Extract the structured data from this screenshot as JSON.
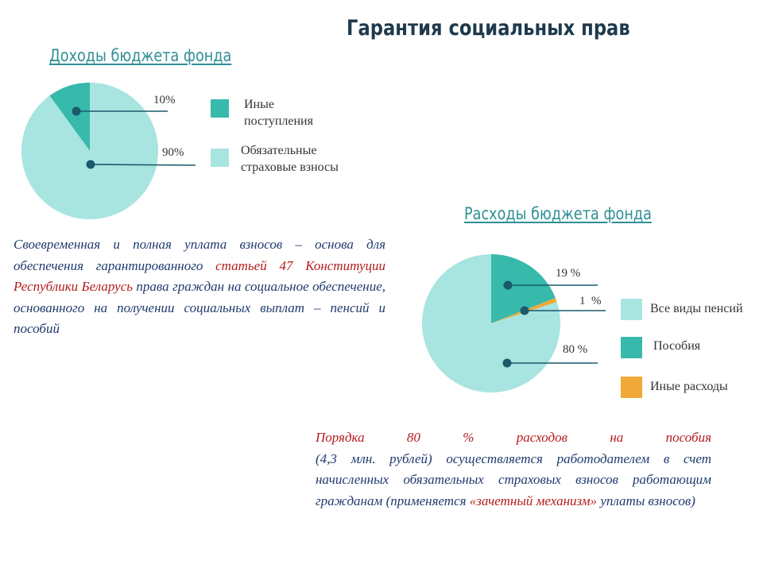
{
  "page": {
    "title": "Гарантия социальных прав"
  },
  "colors": {
    "light": "#a8e4e0",
    "teal": "#37b9ab",
    "orange": "#f0a838",
    "leader": "#1a5a6a"
  },
  "chart_data": [
    {
      "type": "pie",
      "title": "Доходы бюджета фонда",
      "slices": [
        {
          "label": "Иные поступления",
          "value": 10,
          "value_label": "10%",
          "color": "#37b9ab"
        },
        {
          "label": "Обязательные страховые взносы",
          "value": 90,
          "value_label": "90%",
          "color": "#a8e4e0"
        }
      ],
      "legend_position": "right"
    },
    {
      "type": "pie",
      "title": "Расходы бюджета фонда",
      "slices": [
        {
          "label": "Пособия",
          "value": 19,
          "value_label": "19 %",
          "color": "#37b9ab"
        },
        {
          "label": "Иные расходы",
          "value": 1,
          "value_label": "1  %",
          "color": "#f0a838"
        },
        {
          "label": "Все виды пенсий",
          "value": 80,
          "value_label": "80 %",
          "color": "#a8e4e0"
        }
      ],
      "legend": [
        "Все виды пенсий",
        "Пособия",
        "Иные расходы"
      ],
      "legend_position": "right"
    }
  ],
  "income_legend": {
    "item1": {
      "line1": "Иные",
      "line2": "поступления"
    },
    "item2": {
      "line1": "Обязательные",
      "line2": "страховые взносы"
    }
  },
  "left_text": {
    "part1": "Своевременная и полная уплата взносов – основа для обеспечения гарантированного ",
    "link": "статьей 47 Конституции Республики Беларусь",
    "part2": " права граждан на социальное обеспечение, основанного на получении социальных выплат – пенсий и пособий"
  },
  "right_text": {
    "part1": "Порядка 80 % расходов на пособия",
    "part2": "(4,3 млн. рублей) осуществляется работодателем в счет начисленных обязательных страховых взносов работающим гражданам (применяется ",
    "part3": "«зачетный механизм»",
    "part4": " уплаты взносов)"
  }
}
